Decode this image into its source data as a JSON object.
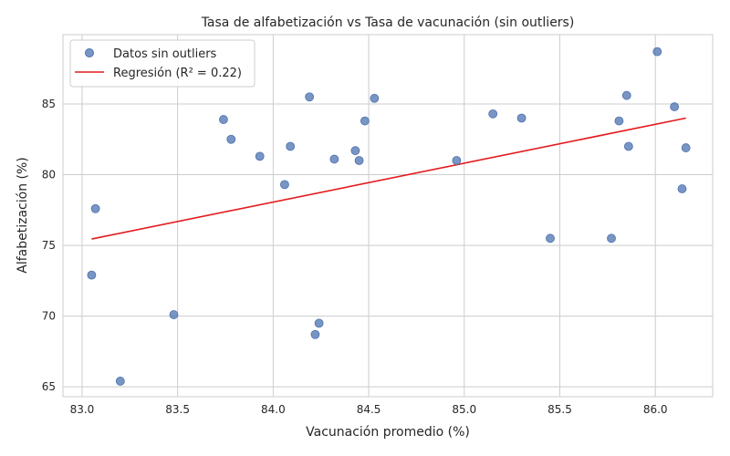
{
  "chart_data": {
    "type": "scatter",
    "title": "Tasa de alfabetización vs Tasa de vacunación (sin outliers)",
    "xlabel": "Vacunación promedio (%)",
    "ylabel": "Alfabetización (%)",
    "xlim": [
      82.9,
      86.3
    ],
    "ylim": [
      64.3,
      89.9
    ],
    "x_ticks": [
      83.0,
      83.5,
      84.0,
      84.5,
      85.0,
      85.5,
      86.0
    ],
    "x_tick_labels": [
      "83.0",
      "83.5",
      "84.0",
      "84.5",
      "85.0",
      "85.5",
      "86.0"
    ],
    "y_ticks": [
      65,
      70,
      75,
      80,
      85
    ],
    "y_tick_labels": [
      "65",
      "70",
      "75",
      "80",
      "85"
    ],
    "grid": true,
    "legend_position": "top-left",
    "series": [
      {
        "name": "Datos sin outliers",
        "kind": "scatter",
        "color": "#4c72b0",
        "points": [
          [
            83.05,
            72.9
          ],
          [
            83.07,
            77.6
          ],
          [
            83.2,
            65.4
          ],
          [
            83.48,
            70.1
          ],
          [
            83.74,
            83.9
          ],
          [
            83.78,
            82.5
          ],
          [
            83.93,
            81.3
          ],
          [
            84.06,
            79.3
          ],
          [
            84.09,
            82.0
          ],
          [
            84.19,
            85.5
          ],
          [
            84.22,
            68.7
          ],
          [
            84.24,
            69.5
          ],
          [
            84.32,
            81.1
          ],
          [
            84.43,
            81.7
          ],
          [
            84.45,
            81.0
          ],
          [
            84.48,
            83.8
          ],
          [
            84.53,
            85.4
          ],
          [
            84.96,
            81.0
          ],
          [
            85.15,
            84.3
          ],
          [
            85.3,
            84.0
          ],
          [
            85.45,
            75.5
          ],
          [
            85.77,
            75.5
          ],
          [
            85.81,
            83.8
          ],
          [
            85.85,
            85.6
          ],
          [
            85.86,
            82.0
          ],
          [
            86.01,
            88.7
          ],
          [
            86.1,
            84.8
          ],
          [
            86.14,
            79.0
          ],
          [
            86.16,
            81.9
          ]
        ]
      },
      {
        "name": "Regresión (R² = 0.22)",
        "kind": "line",
        "color": "#e41a1c",
        "points": [
          [
            83.05,
            75.45
          ],
          [
            86.16,
            84.0
          ]
        ]
      }
    ]
  }
}
